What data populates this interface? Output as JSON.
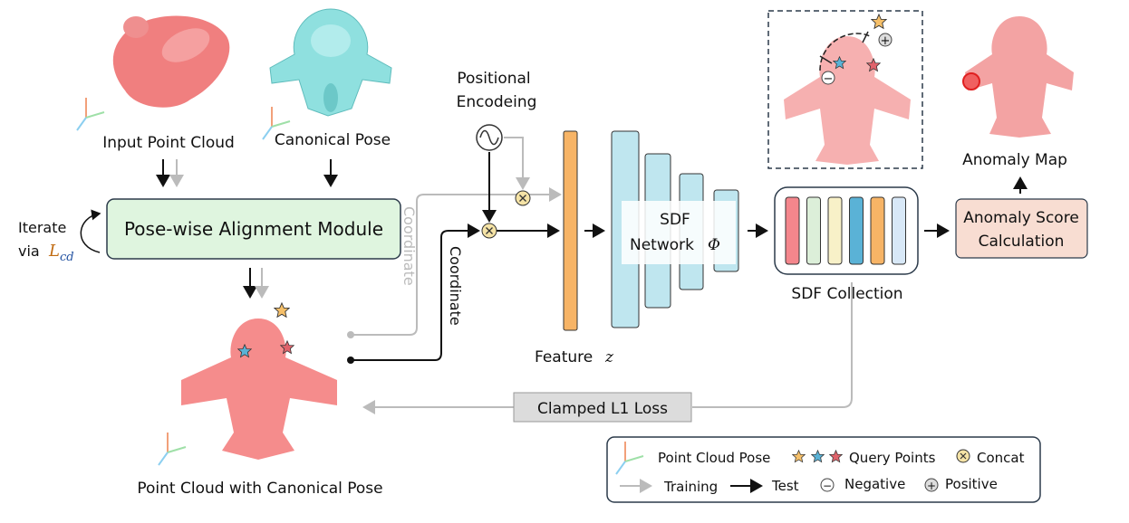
{
  "labels": {
    "input_point_cloud": "Input Point Cloud",
    "canonical_pose": "Canonical Pose",
    "pose_alignment_module": "Pose-wise Alignment Module",
    "iterate_line1": "Iterate",
    "iterate_line2": "via",
    "iterate_loss_symbol": "L",
    "iterate_loss_sub": "cd",
    "point_cloud_canonical": "Point Cloud with Canonical Pose",
    "coordinate_training": "Coordinate",
    "coordinate_test": "Coordinate",
    "positional_encoding_line1": "Positional",
    "positional_encoding_line2": "Encodeing",
    "feature_label": "Feature",
    "feature_symbol": "z",
    "sdf_network_line1": "SDF",
    "sdf_network_line2": "Network",
    "sdf_network_symbol": "Φ",
    "sdf_collection": "SDF Collection",
    "anomaly_score_line1": "Anomaly Score",
    "anomaly_score_line2": "Calculation",
    "anomaly_map": "Anomaly Map",
    "clamped_loss": "Clamped L1 Loss",
    "plus_symbol": "+",
    "minus_symbol": "−"
  },
  "legend": {
    "point_cloud_pose": "Point Cloud Pose",
    "query_points": "Query Points",
    "concat": "Concat",
    "training": "Training",
    "test": "Test",
    "negative": "Negative",
    "positive": "Positive"
  },
  "colors": {
    "input_shape": "#f07f7f",
    "canonical_shape": "#8fe0df",
    "alignment_box": "#dff5df",
    "feature_bar": "#f7b466",
    "sdf_network": "#bfe6ef",
    "anomaly_box": "#f8ddd2",
    "loss_box": "#dcdcdc",
    "training_arrow": "#bbbbbb",
    "test_arrow": "#111111",
    "star_orange": "#f6c06a",
    "star_blue": "#5ab2d6",
    "star_red": "#e0636b",
    "sdf_collection_bars": [
      "#f4868c",
      "#dcefd9",
      "#f8f1c8",
      "#5ab2d6",
      "#f7b466",
      "#d8e8f7"
    ]
  },
  "icons": [
    "axes-icon",
    "sine-wave-icon",
    "concat-icon",
    "star-icon",
    "plus-circle-icon",
    "minus-circle-icon"
  ]
}
